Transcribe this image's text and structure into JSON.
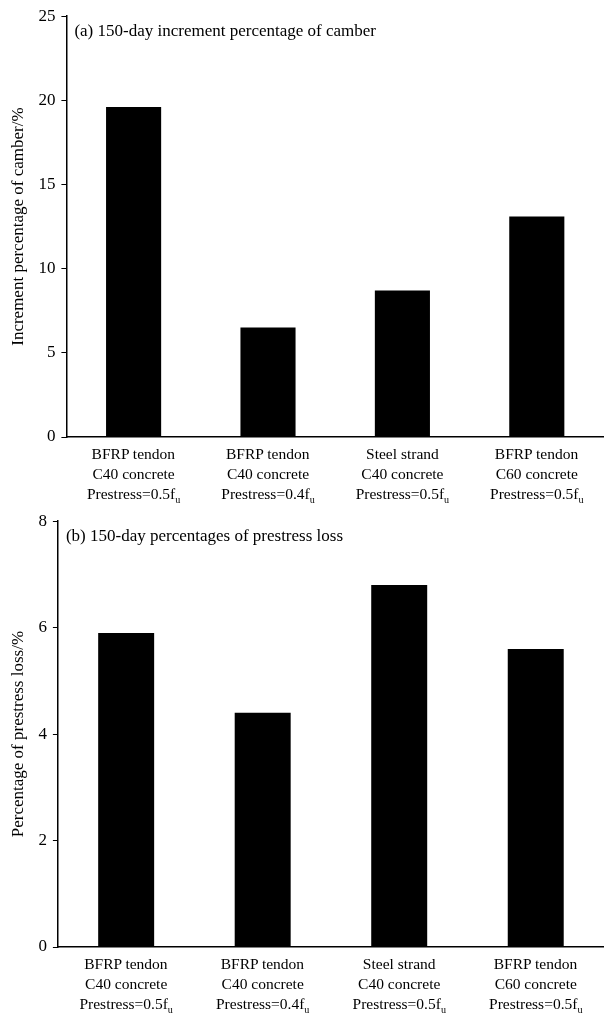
{
  "chart_data": [
    {
      "type": "bar",
      "title": "(a) 150-day increment percentage of camber",
      "ylabel": "Increment percentage of camber/%",
      "categories": [
        "BFRP tendon\nC40 concrete\nPrestress=0.5f$_{u}$",
        "BFRP tendon\nC40 concrete\nPrestress=0.4f$_{u}$",
        "Steel strand\nC40 concrete\nPrestress=0.5f$_{u}$",
        "BFRP tendon\nC60 concrete\nPrestress=0.5f$_{u}$"
      ],
      "values": [
        19.6,
        6.5,
        8.7,
        13.1
      ],
      "color": "#000000",
      "ylim": [
        0,
        25
      ],
      "yticks": [
        0,
        5,
        10,
        15,
        20,
        25
      ],
      "legend": false
    },
    {
      "type": "bar",
      "title": "(b) 150-day percentages of prestress loss",
      "ylabel": "Percentage of prestress loss/%",
      "categories": [
        "BFRP tendon\nC40 concrete\nPrestress=0.5f$_{u}$",
        "BFRP tendon\nC40 concrete\nPrestress=0.4f$_{u}$",
        "Steel strand\nC40 concrete\nPrestress=0.5f$_{u}$",
        "BFRP tendon\nC60 concrete\nPrestress=0.5f$_{u}$"
      ],
      "values": [
        5.9,
        4.4,
        6.8,
        5.6
      ],
      "color": "#000000",
      "ylim": [
        0,
        8
      ],
      "yticks": [
        0,
        2,
        4,
        6,
        8
      ],
      "legend": false
    }
  ]
}
